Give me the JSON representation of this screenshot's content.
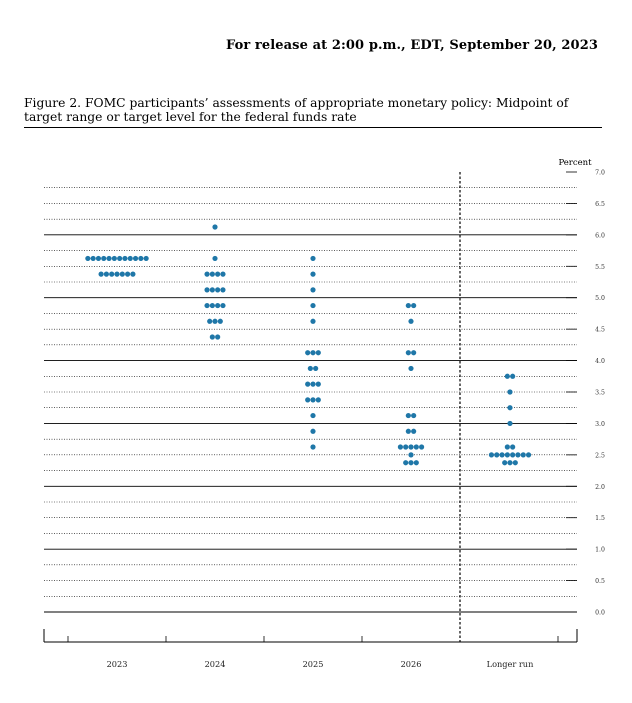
{
  "header": {
    "release_text": "For release at 2:00 p.m., EDT, September 20, 2023"
  },
  "figure": {
    "caption": "Figure 2.  FOMC participants’ assessments of appropriate monetary policy: Midpoint of target range or target level for the federal funds rate"
  },
  "colors": {
    "dot": "#1F77A8",
    "axis": "#000000"
  },
  "chart_data": {
    "type": "scatter",
    "title": "FOMC participants’ assessments of appropriate monetary policy: Midpoint of target range or target level for the federal funds rate",
    "ylabel": "Percent",
    "ylim": [
      0,
      7
    ],
    "yticks": [
      0.0,
      0.5,
      1.0,
      1.5,
      2.0,
      2.5,
      3.0,
      3.5,
      4.0,
      4.5,
      5.0,
      5.5,
      6.0,
      6.5,
      7.0
    ],
    "ytick_labels": [
      "0.0",
      "0.5",
      "1.0",
      "1.5",
      "2.0",
      "2.5",
      "3.0",
      "3.5",
      "4.0",
      "4.5",
      "5.0",
      "5.5",
      "6.0",
      "6.5",
      "7.0"
    ],
    "categories": [
      "2023",
      "2024",
      "2025",
      "2026",
      "Longer run"
    ],
    "series": [
      {
        "name": "2023",
        "points": [
          {
            "y": 5.625,
            "n": 12
          },
          {
            "y": 5.375,
            "n": 7
          }
        ]
      },
      {
        "name": "2024",
        "points": [
          {
            "y": 6.125,
            "n": 1
          },
          {
            "y": 5.625,
            "n": 1
          },
          {
            "y": 5.375,
            "n": 4
          },
          {
            "y": 5.125,
            "n": 4
          },
          {
            "y": 4.875,
            "n": 4
          },
          {
            "y": 4.625,
            "n": 3
          },
          {
            "y": 4.375,
            "n": 2
          }
        ]
      },
      {
        "name": "2025",
        "points": [
          {
            "y": 5.625,
            "n": 1
          },
          {
            "y": 5.375,
            "n": 1
          },
          {
            "y": 5.125,
            "n": 1
          },
          {
            "y": 4.875,
            "n": 1
          },
          {
            "y": 4.625,
            "n": 1
          },
          {
            "y": 4.125,
            "n": 3
          },
          {
            "y": 3.875,
            "n": 2
          },
          {
            "y": 3.625,
            "n": 3
          },
          {
            "y": 3.375,
            "n": 3
          },
          {
            "y": 3.125,
            "n": 1
          },
          {
            "y": 2.875,
            "n": 1
          },
          {
            "y": 2.625,
            "n": 1
          }
        ]
      },
      {
        "name": "2026",
        "points": [
          {
            "y": 4.875,
            "n": 2
          },
          {
            "y": 4.625,
            "n": 1
          },
          {
            "y": 4.125,
            "n": 2
          },
          {
            "y": 3.875,
            "n": 1
          },
          {
            "y": 3.125,
            "n": 2
          },
          {
            "y": 2.875,
            "n": 2
          },
          {
            "y": 2.625,
            "n": 5
          },
          {
            "y": 2.5,
            "n": 1
          },
          {
            "y": 2.375,
            "n": 3
          }
        ]
      },
      {
        "name": "Longer run",
        "points": [
          {
            "y": 3.75,
            "n": 2
          },
          {
            "y": 3.5,
            "n": 1
          },
          {
            "y": 3.25,
            "n": 1
          },
          {
            "y": 3.0,
            "n": 1
          },
          {
            "y": 2.625,
            "n": 2
          },
          {
            "y": 2.5,
            "n": 8
          },
          {
            "y": 2.375,
            "n": 3
          }
        ]
      }
    ]
  }
}
